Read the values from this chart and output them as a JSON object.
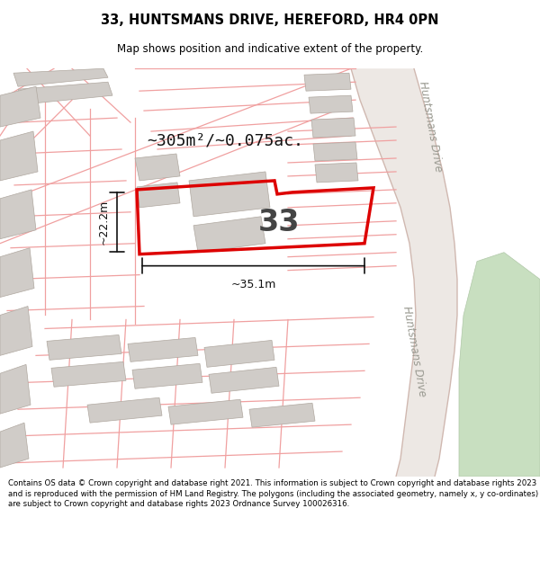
{
  "title_line1": "33, HUNTSMANS DRIVE, HEREFORD, HR4 0PN",
  "title_line2": "Map shows position and indicative extent of the property.",
  "area_text": "~305m²/~0.075ac.",
  "dim_width": "~35.1m",
  "dim_height": "~22.2m",
  "label_33": "33",
  "road_label": "Huntsmans Drive",
  "footer_text": "Contains OS data © Crown copyright and database right 2021. This information is subject to Crown copyright and database rights 2023 and is reproduced with the permission of HM Land Registry. The polygons (including the associated geometry, namely x, y co-ordinates) are subject to Crown copyright and database rights 2023 Ordnance Survey 100026316.",
  "map_bg": "#ffffff",
  "highlight_color": "#dd0000",
  "building_fill": "#d0ccc8",
  "green_fill": "#c8dfc0",
  "road_line_color": "#f0a0a0",
  "road_edge_color": "#c8b8b0",
  "title_color": "#000000",
  "footer_color": "#000000"
}
